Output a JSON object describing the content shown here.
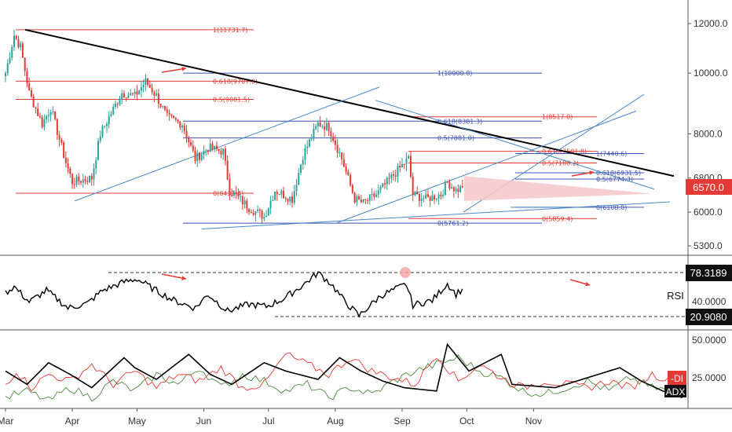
{
  "colors": {
    "up": "#26a69a",
    "down": "#e53935",
    "fib_red": "#e53935",
    "fib_blue": "#3f51b5",
    "trend_blue": "#4a86c8",
    "trend_black": "#000000",
    "price_badge": "#e53935",
    "wedge_fill": "#f6c7c8",
    "rsi_line": "#000000",
    "plus_di": "#4c8a3e",
    "minus_di": "#e53935",
    "adx": "#000000",
    "arrow": "#e53935"
  },
  "chart_data": [
    {
      "type": "candlestick",
      "pane": "price",
      "scale": "log",
      "y_ticks": [
        "12000.0",
        "10000.0",
        "8000.0",
        "6800.0",
        "6000.0",
        "5300.0"
      ],
      "x_ticks": [
        "Mar",
        "Apr",
        "May",
        "Jun",
        "Jul",
        "Aug",
        "Sep",
        "Oct",
        "Nov"
      ],
      "last_price": "6570.0",
      "anchors": [
        {
          "date": "Mar 1",
          "price": 10000
        },
        {
          "date": "Mar 5",
          "price": 11500
        },
        {
          "date": "Mar 8",
          "price": 11000
        },
        {
          "date": "Mar 12",
          "price": 9300
        },
        {
          "date": "Mar 18",
          "price": 8300
        },
        {
          "date": "Mar 22",
          "price": 8800
        },
        {
          "date": "Mar 29",
          "price": 7200
        },
        {
          "date": "Apr 1",
          "price": 6700
        },
        {
          "date": "Apr 5",
          "price": 6750
        },
        {
          "date": "Apr 10",
          "price": 6800
        },
        {
          "date": "Apr 14",
          "price": 8000
        },
        {
          "date": "Apr 24",
          "price": 9300
        },
        {
          "date": "Apr 30",
          "price": 9200
        },
        {
          "date": "May 5",
          "price": 9700
        },
        {
          "date": "May 10",
          "price": 9200
        },
        {
          "date": "May 15",
          "price": 8500
        },
        {
          "date": "May 22",
          "price": 8300
        },
        {
          "date": "May 28",
          "price": 7300
        },
        {
          "date": "Jun 3",
          "price": 7600
        },
        {
          "date": "Jun 10",
          "price": 7500
        },
        {
          "date": "Jun 13",
          "price": 6500
        },
        {
          "date": "Jun 22",
          "price": 6100
        },
        {
          "date": "Jun 29",
          "price": 5900
        },
        {
          "date": "Jul 4",
          "price": 6500
        },
        {
          "date": "Jul 12",
          "price": 6300
        },
        {
          "date": "Jul 17",
          "price": 7400
        },
        {
          "date": "Jul 24",
          "price": 8300
        },
        {
          "date": "Jul 29",
          "price": 8200
        },
        {
          "date": "Aug 4",
          "price": 7300
        },
        {
          "date": "Aug 10",
          "price": 6300
        },
        {
          "date": "Aug 14",
          "price": 6200
        },
        {
          "date": "Aug 20",
          "price": 6400
        },
        {
          "date": "Aug 30",
          "price": 7000
        },
        {
          "date": "Sep 4",
          "price": 7300
        },
        {
          "date": "Sep 6",
          "price": 6400
        },
        {
          "date": "Sep 12",
          "price": 6300
        },
        {
          "date": "Sep 19",
          "price": 6400
        },
        {
          "date": "Sep 22",
          "price": 6700
        },
        {
          "date": "Sep 26",
          "price": 6500
        },
        {
          "date": "Sep 29",
          "price": 6570
        }
      ],
      "fib_red_top": [
        {
          "label": "1(11731.7)",
          "price": 11731.7
        },
        {
          "label": "0.618(9707.0)",
          "price": 9707.0
        },
        {
          "label": "0.5(9081.5)",
          "price": 9081.5
        },
        {
          "label": "0(6431.4)",
          "price": 6431.4
        }
      ],
      "fib_blue_mid": [
        {
          "label": "1(10000.8)",
          "price": 10000.8
        },
        {
          "label": "0.618(8381.3)",
          "price": 8381.3
        },
        {
          "label": "0.5(7881.0)",
          "price": 7881.0
        },
        {
          "label": "0(5761.2)",
          "price": 5761.2
        }
      ],
      "fib_red_right": [
        {
          "label": "1(8517.0)",
          "price": 8517.0
        },
        {
          "label": "0.618(7501.8)",
          "price": 7501.8
        },
        {
          "label": "0.5(7188.2)",
          "price": 7188.2
        },
        {
          "label": "0(5859.4)",
          "price": 5859.4
        }
      ],
      "fib_blue_right": [
        {
          "label": "1(7440.6)",
          "price": 7440.6
        },
        {
          "label": "0.618(6931.5)",
          "price": 6931.5
        },
        {
          "label": "0.5(6774.3)",
          "price": 6774.3
        },
        {
          "label": "0(6108.0)",
          "price": 6108.0
        }
      ]
    },
    {
      "type": "line",
      "pane": "rsi",
      "series": [
        {
          "name": "RSI"
        }
      ],
      "levels": {
        "upper": "78.3189",
        "mid": "40.0000",
        "lower": "20.9080"
      },
      "anchors": [
        {
          "date": "Mar 1",
          "value": 52
        },
        {
          "date": "Mar 5",
          "value": 60
        },
        {
          "date": "Mar 12",
          "value": 40
        },
        {
          "date": "Mar 20",
          "value": 55
        },
        {
          "date": "Mar 30",
          "value": 32
        },
        {
          "date": "Apr 8",
          "value": 38
        },
        {
          "date": "Apr 15",
          "value": 55
        },
        {
          "date": "Apr 25",
          "value": 66
        },
        {
          "date": "May 1",
          "value": 70
        },
        {
          "date": "May 8",
          "value": 58
        },
        {
          "date": "May 18",
          "value": 42
        },
        {
          "date": "May 28",
          "value": 32
        },
        {
          "date": "Jun 3",
          "value": 50
        },
        {
          "date": "Jun 12",
          "value": 28
        },
        {
          "date": "Jun 22",
          "value": 37
        },
        {
          "date": "Jun 30",
          "value": 34
        },
        {
          "date": "Jul 8",
          "value": 44
        },
        {
          "date": "Jul 17",
          "value": 62
        },
        {
          "date": "Jul 24",
          "value": 78
        },
        {
          "date": "Jul 30",
          "value": 64
        },
        {
          "date": "Aug 5",
          "value": 42
        },
        {
          "date": "Aug 12",
          "value": 22
        },
        {
          "date": "Aug 22",
          "value": 48
        },
        {
          "date": "Sep 3",
          "value": 63
        },
        {
          "date": "Sep 6",
          "value": 36
        },
        {
          "date": "Sep 15",
          "value": 42
        },
        {
          "date": "Sep 22",
          "value": 64
        },
        {
          "date": "Sep 26",
          "value": 50
        },
        {
          "date": "Sep 29",
          "value": 57
        }
      ]
    },
    {
      "type": "line",
      "pane": "dmi",
      "series": [
        {
          "name": "-DI"
        },
        {
          "name": "ADX"
        },
        {
          "name": "+DI"
        }
      ],
      "levels": {
        "upper": "50.0000",
        "lower": "25.0000"
      },
      "adx": [
        [
          0,
          30
        ],
        [
          10,
          22
        ],
        [
          20,
          35
        ],
        [
          30,
          28
        ],
        [
          40,
          20
        ],
        [
          55,
          38
        ],
        [
          60,
          32
        ],
        [
          70,
          25
        ],
        [
          85,
          40
        ],
        [
          95,
          28
        ],
        [
          105,
          22
        ],
        [
          120,
          35
        ],
        [
          130,
          30
        ],
        [
          145,
          25
        ],
        [
          155,
          38
        ],
        [
          165,
          30
        ],
        [
          175,
          24
        ],
        [
          185,
          20
        ],
        [
          200,
          18
        ],
        [
          205,
          46
        ],
        [
          215,
          30
        ],
        [
          230,
          40
        ],
        [
          235,
          22
        ],
        [
          255,
          20
        ],
        [
          265,
          24
        ],
        [
          285,
          32
        ],
        [
          295,
          24
        ],
        [
          305,
          18
        ],
        [
          314,
          14
        ]
      ],
      "minus_di": [
        [
          0,
          22
        ],
        [
          5,
          30
        ],
        [
          12,
          20
        ],
        [
          20,
          28
        ],
        [
          30,
          24
        ],
        [
          40,
          34
        ],
        [
          50,
          22
        ],
        [
          60,
          30
        ],
        [
          70,
          20
        ],
        [
          80,
          28
        ],
        [
          90,
          24
        ],
        [
          100,
          32
        ],
        [
          110,
          20
        ],
        [
          120,
          22
        ],
        [
          130,
          40
        ],
        [
          140,
          34
        ],
        [
          150,
          28
        ],
        [
          160,
          38
        ],
        [
          170,
          30
        ],
        [
          180,
          26
        ],
        [
          190,
          22
        ],
        [
          200,
          40
        ],
        [
          210,
          24
        ],
        [
          220,
          34
        ],
        [
          230,
          26
        ],
        [
          240,
          20
        ],
        [
          250,
          24
        ],
        [
          260,
          22
        ],
        [
          270,
          20
        ],
        [
          280,
          24
        ],
        [
          290,
          20
        ],
        [
          300,
          28
        ],
        [
          310,
          24
        ],
        [
          314,
          22
        ]
      ],
      "plus_di": [
        [
          0,
          14
        ],
        [
          10,
          18
        ],
        [
          20,
          12
        ],
        [
          30,
          20
        ],
        [
          40,
          14
        ],
        [
          50,
          24
        ],
        [
          60,
          18
        ],
        [
          70,
          28
        ],
        [
          80,
          22
        ],
        [
          90,
          32
        ],
        [
          100,
          20
        ],
        [
          110,
          28
        ],
        [
          120,
          24
        ],
        [
          130,
          18
        ],
        [
          140,
          22
        ],
        [
          150,
          14
        ],
        [
          160,
          20
        ],
        [
          170,
          16
        ],
        [
          180,
          24
        ],
        [
          190,
          30
        ],
        [
          200,
          34
        ],
        [
          210,
          38
        ],
        [
          220,
          30
        ],
        [
          230,
          26
        ],
        [
          240,
          18
        ],
        [
          250,
          16
        ],
        [
          260,
          20
        ],
        [
          270,
          24
        ],
        [
          280,
          18
        ],
        [
          290,
          26
        ],
        [
          300,
          20
        ],
        [
          310,
          18
        ],
        [
          314,
          16
        ]
      ]
    }
  ],
  "labels": {
    "price_badge": "6570.0",
    "rsi_name": "RSI",
    "rsi_upper": "78.3189",
    "rsi_lower": "20.9080",
    "rsi_mid": "40.0000",
    "dmi_upper": "50.0000",
    "dmi_lower": "25.0000",
    "minus_di_tag": "-DI",
    "adx_tag": "ADX"
  }
}
